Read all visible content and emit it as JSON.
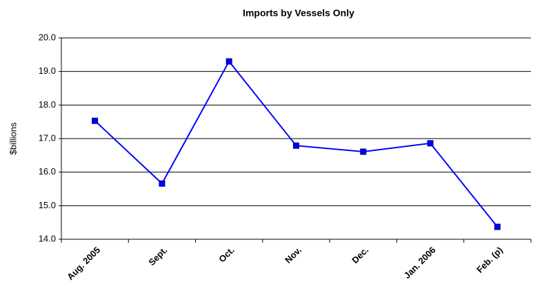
{
  "chart_data": {
    "type": "line",
    "title": "Imports by Vessels Only",
    "y_label": "$billions",
    "categories": [
      "Aug. 2005",
      "Sept.",
      "Oct.",
      "Nov.",
      "Dec.",
      "Jan. 2006",
      "Feb. (p)"
    ],
    "series": [
      {
        "name": "Imports by Vessels Only",
        "color": "#0000ff",
        "values": [
          17.53,
          15.66,
          19.3,
          16.79,
          16.61,
          16.86,
          14.37
        ]
      }
    ],
    "ylim": [
      14,
      20
    ],
    "yticks": [
      {
        "value": 14,
        "label": "14.0"
      },
      {
        "value": 15,
        "label": "15.0"
      },
      {
        "value": 16,
        "label": "16.0"
      },
      {
        "value": 17,
        "label": "17.0"
      },
      {
        "value": 18,
        "label": "18.0"
      },
      {
        "value": 19,
        "label": "19.0"
      },
      {
        "value": 20,
        "label": "20.0"
      }
    ],
    "grid": true
  }
}
